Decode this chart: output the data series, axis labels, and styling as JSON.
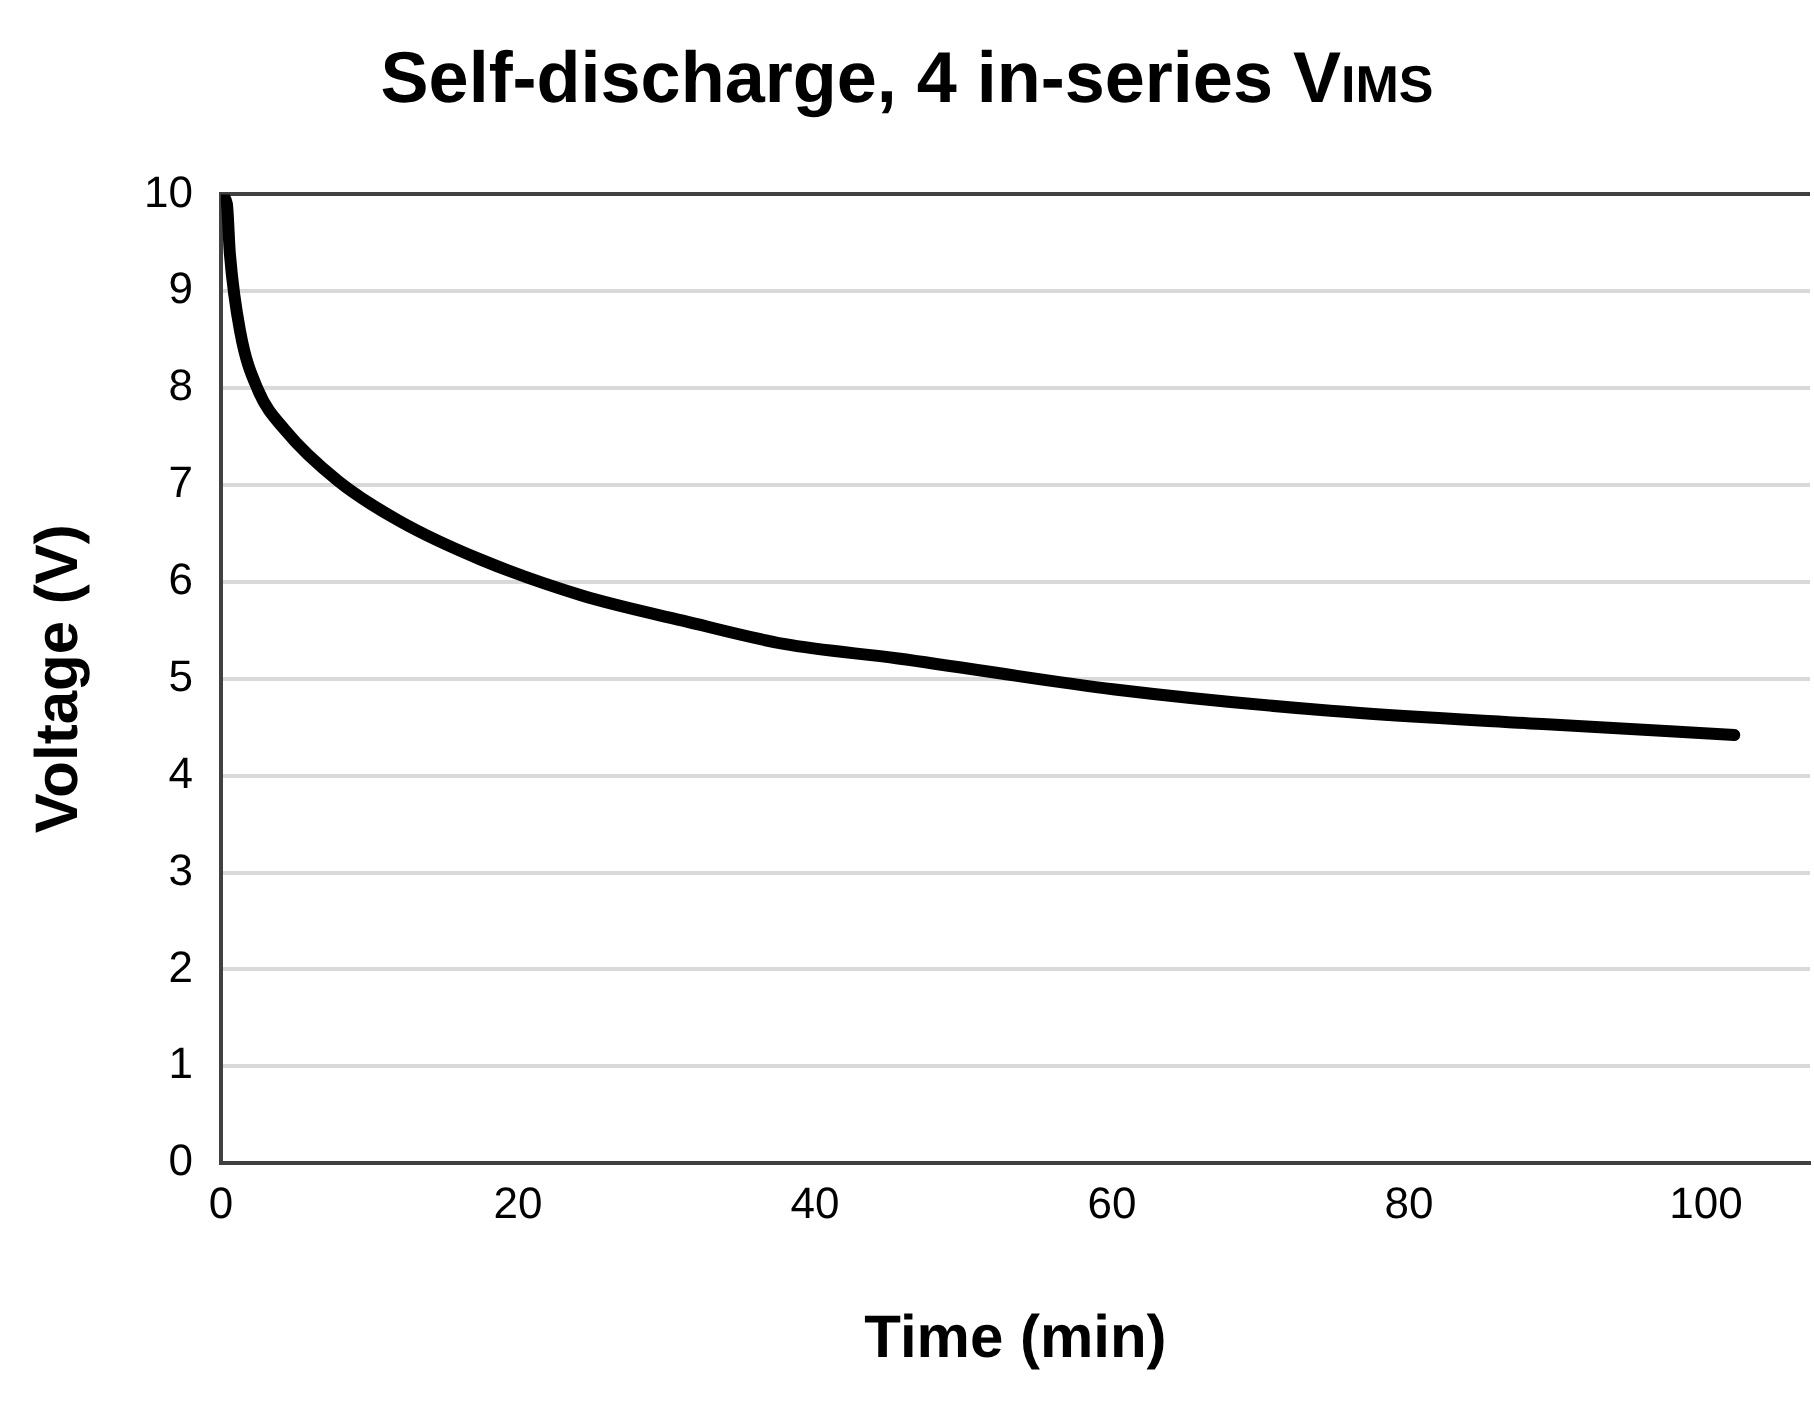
{
  "chart_data": {
    "type": "line",
    "title": "Self-discharge, 4 in-series V$_{IMS}$",
    "xlabel": "Time (min)",
    "ylabel": "Voltage (V)",
    "x": [
      0,
      0.4,
      0.6,
      1.3,
      2.5,
      4.3,
      7.9,
      12,
      17.5,
      24.3,
      31.1,
      37.9,
      45.6,
      60.2,
      74.7,
      89.3,
      101.9
    ],
    "series": [
      {
        "color": "#000000",
        "values": [
          10,
          9.9,
          9.39,
          8.58,
          7.98,
          7.57,
          7.04,
          6.63,
          6.23,
          5.86,
          5.6,
          5.36,
          5.21,
          4.89,
          4.67,
          4.53,
          4.42
        ]
      }
    ],
    "xlim": [
      0,
      107
    ],
    "xticks": [
      0,
      20,
      40,
      60,
      80,
      100
    ],
    "ylim": [
      0,
      10
    ],
    "yticks": [
      0,
      1,
      2,
      3,
      4,
      5,
      6,
      7,
      8,
      9,
      10
    ],
    "grid": "y",
    "legend": false,
    "marker": "none",
    "line_style": "solid"
  }
}
